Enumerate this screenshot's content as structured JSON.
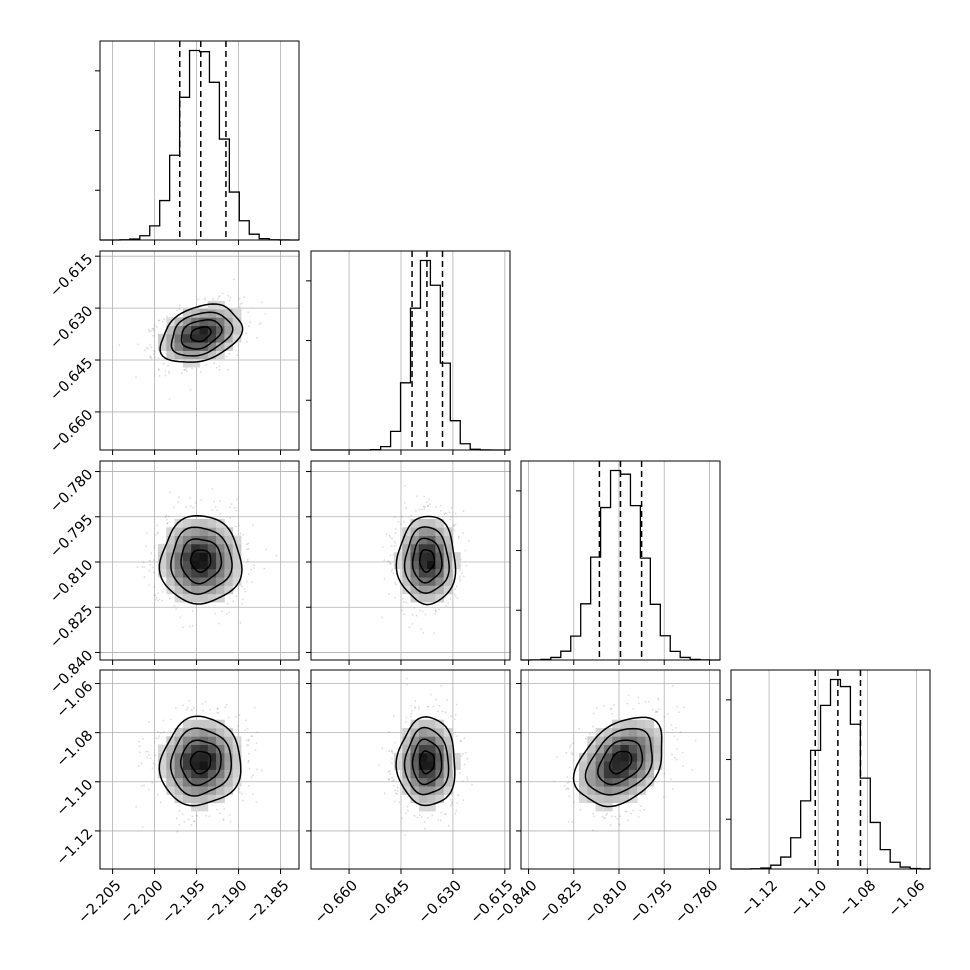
{
  "chart_data": {
    "type": "corner",
    "grid": true,
    "panel_kinds": [
      "histogram",
      "scatter-density-contour"
    ],
    "parameters": [
      {
        "index": 0,
        "mean": -2.1945,
        "sigma": 0.0024,
        "range": [
          -2.2065,
          -2.1828
        ],
        "quantiles": [
          -2.197,
          -2.1945,
          -2.1915
        ],
        "ticks": [
          -2.205,
          -2.2,
          -2.195,
          -2.19,
          -2.185
        ],
        "tick_labels": [
          "−2.205",
          "−2.200",
          "−2.195",
          "−2.190",
          "−2.185"
        ]
      },
      {
        "index": 1,
        "mean": -0.6375,
        "sigma": 0.0042,
        "range": [
          -0.671,
          -0.6135
        ],
        "quantiles": [
          -0.6418,
          -0.6375,
          -0.633
        ],
        "ticks": [
          -0.66,
          -0.645,
          -0.63,
          -0.615
        ],
        "tick_labels": [
          "−0.660",
          "−0.645",
          "−0.630",
          "−0.615"
        ]
      },
      {
        "index": 2,
        "mean": -0.8095,
        "sigma": 0.0073,
        "range": [
          -0.8425,
          -0.7765
        ],
        "quantiles": [
          -0.8165,
          -0.8095,
          -0.8025
        ],
        "ticks": [
          -0.84,
          -0.825,
          -0.81,
          -0.795,
          -0.78
        ],
        "tick_labels": [
          "−0.840",
          "−0.825",
          "−0.810",
          "−0.795",
          "−0.780"
        ]
      },
      {
        "index": 3,
        "mean": -1.092,
        "sigma": 0.009,
        "range": [
          -1.1355,
          -1.0545
        ],
        "quantiles": [
          -1.1012,
          -1.092,
          -1.0828
        ],
        "ticks": [
          -1.12,
          -1.1,
          -1.08,
          -1.06
        ],
        "tick_labels": [
          "−1.12",
          "−1.10",
          "−1.08",
          "−1.06"
        ]
      }
    ],
    "correlations": [
      {
        "x": 0,
        "y": 1,
        "rho": 0.3
      },
      {
        "x": 0,
        "y": 2,
        "rho": 0.0
      },
      {
        "x": 1,
        "y": 2,
        "rho": 0.0
      },
      {
        "x": 0,
        "y": 3,
        "rho": 0.05
      },
      {
        "x": 1,
        "y": 3,
        "rho": 0.0
      },
      {
        "x": 2,
        "y": 3,
        "rho": 0.35
      }
    ],
    "contour_sigma_levels": [
      0.5,
      1.0,
      1.5,
      2.0
    ],
    "colors": {
      "line": "#000000",
      "scatter": "#808080",
      "density_dark": "#000000",
      "grid": "#b0b0b0"
    }
  }
}
